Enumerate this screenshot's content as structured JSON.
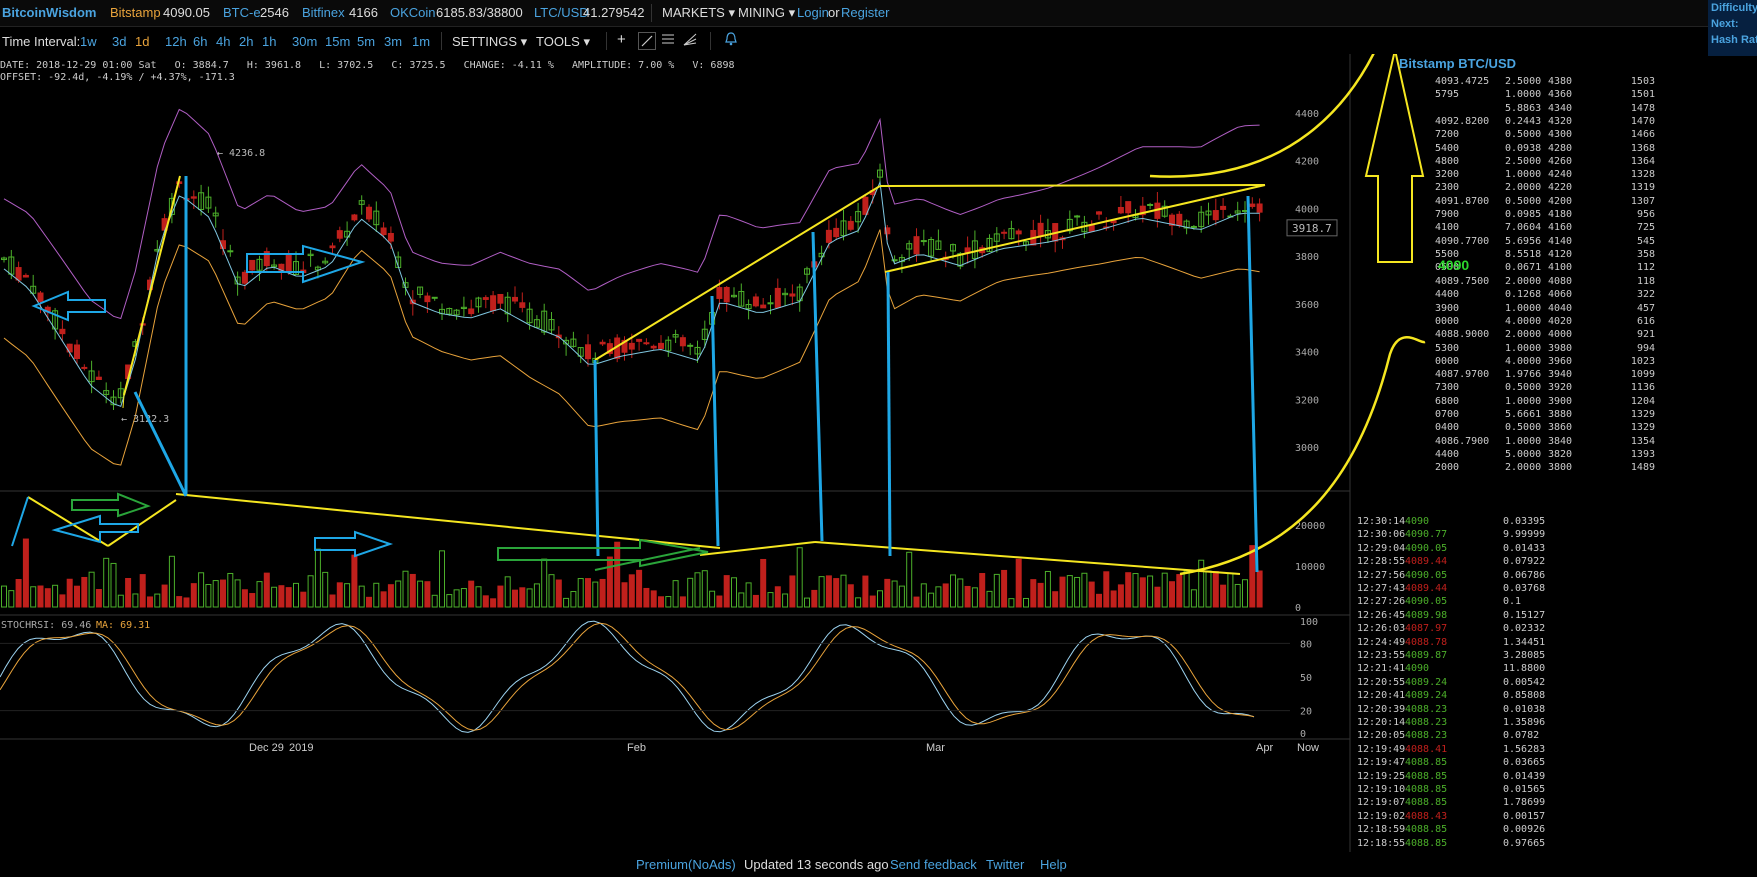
{
  "header": {
    "logo": "BitcoinWisdom",
    "tickers": [
      {
        "name": "Bitstamp",
        "value": "4090.05",
        "color": "#e8a33b"
      },
      {
        "name": "BTC-e",
        "value": "2546",
        "color": "#4aa3df"
      },
      {
        "name": "Bitfinex",
        "value": "4166",
        "color": "#4aa3df"
      },
      {
        "name": "OKCoin",
        "value": "6185.83/38800",
        "color": "#4aa3df"
      },
      {
        "name": "LTC/USD",
        "value": "41.279542",
        "color": "#4aa3df"
      }
    ],
    "menu_markets": "MARKETS",
    "menu_mining": "MINING",
    "login": "Login",
    "or": "or",
    "register": "Register",
    "right_panel": [
      "Difficulty:",
      "Next:",
      "Hash Rate:"
    ]
  },
  "toolbar": {
    "time_interval_label": "Time Interval:",
    "intervals": [
      "1w",
      "3d",
      "1d",
      "12h",
      "6h",
      "4h",
      "2h",
      "1h",
      "30m",
      "15m",
      "5m",
      "3m",
      "1m"
    ],
    "active_interval": "1d",
    "settings": "SETTINGS",
    "tools": "TOOLS"
  },
  "info": {
    "line1": "DATE: 2018-12-29 01:00 Sat   O: 3884.7   H: 3961.8   L: 3702.5   C: 3725.5   CHANGE: -4.11 %   AMPLITUDE: 7.00 %   V: 6898",
    "line2": "OFFSET: -92.4d, -4.19% / +4.37%, -171.3"
  },
  "chart": {
    "price_axis": [
      "4400",
      "4200",
      "4000",
      "3800",
      "3600",
      "3400",
      "3200",
      "3000"
    ],
    "volume_axis": [
      "20000",
      "10000",
      "0"
    ],
    "rsi_axis": [
      "100",
      "80",
      "50",
      "20",
      "0"
    ],
    "current_price": "3918.7",
    "high_label": "← 4236.8",
    "low_label": "← 3122.3",
    "stochrsi_label": "STOCHRSI: 69.46",
    "ma_label": "MA: 69.31",
    "x_labels": [
      "Dec 29",
      "2019",
      "Feb",
      "Mar",
      "Apr",
      "Now"
    ]
  },
  "orderbook": {
    "title": "Bitstamp BTC/USD",
    "mid_price": "4090",
    "asks": [
      [
        "4093.4725",
        "2.5000",
        "4380",
        "1503"
      ],
      [
        "5795",
        "1.0000",
        "4360",
        "1501"
      ],
      [
        "",
        "5.8863",
        "4340",
        "1478"
      ],
      [
        "4092.8200",
        "0.2443",
        "4320",
        "1470"
      ],
      [
        "7200",
        "0.5000",
        "4300",
        "1466"
      ],
      [
        "5400",
        "0.0938",
        "4280",
        "1368"
      ],
      [
        "4800",
        "2.5000",
        "4260",
        "1364"
      ],
      [
        "3200",
        "1.0000",
        "4240",
        "1328"
      ],
      [
        "2300",
        "2.0000",
        "4220",
        "1319"
      ],
      [
        "4091.8700",
        "0.5000",
        "4200",
        "1307"
      ],
      [
        "7900",
        "0.0985",
        "4180",
        "956"
      ],
      [
        "4100",
        "7.0604",
        "4160",
        "725"
      ],
      [
        "4090.7700",
        "5.6956",
        "4140",
        "545"
      ],
      [
        "5500",
        "8.5518",
        "4120",
        "358"
      ],
      [
        "0500",
        "0.0671",
        "4100",
        "112"
      ]
    ],
    "bids": [
      [
        "4089.7500",
        "2.0000",
        "4080",
        "118"
      ],
      [
        "4400",
        "0.1268",
        "4060",
        "322"
      ],
      [
        "3900",
        "1.0000",
        "4040",
        "457"
      ],
      [
        "0000",
        "4.0000",
        "4020",
        "616"
      ],
      [
        "4088.9000",
        "2.0000",
        "4000",
        "921"
      ],
      [
        "5300",
        "1.0000",
        "3980",
        "994"
      ],
      [
        "0000",
        "4.0000",
        "3960",
        "1023"
      ],
      [
        "4087.9700",
        "1.9766",
        "3940",
        "1099"
      ],
      [
        "7300",
        "0.5000",
        "3920",
        "1136"
      ],
      [
        "6800",
        "1.0000",
        "3900",
        "1204"
      ],
      [
        "0700",
        "5.6661",
        "3880",
        "1329"
      ],
      [
        "0400",
        "0.5000",
        "3860",
        "1329"
      ],
      [
        "4086.7900",
        "1.0000",
        "3840",
        "1354"
      ],
      [
        "4400",
        "5.0000",
        "3820",
        "1393"
      ],
      [
        "2000",
        "2.0000",
        "3800",
        "1489"
      ]
    ]
  },
  "trades": [
    [
      "12:30:14",
      "4090",
      "0.03395",
      "g"
    ],
    [
      "12:30:06",
      "4090.77",
      "9.99999",
      "g"
    ],
    [
      "12:29:04",
      "4090.05",
      "0.01433",
      "g"
    ],
    [
      "12:28:55",
      "4089.44",
      "0.07922",
      "r"
    ],
    [
      "12:27:56",
      "4090.05",
      "0.06786",
      "g"
    ],
    [
      "12:27:43",
      "4089.44",
      "0.03768",
      "r"
    ],
    [
      "12:27:26",
      "4090.05",
      "0.1",
      "g"
    ],
    [
      "12:26:45",
      "4089.98",
      "0.15127",
      "g"
    ],
    [
      "12:26:03",
      "4087.97",
      "0.02332",
      "r"
    ],
    [
      "12:24:49",
      "4088.78",
      "1.34451",
      "r"
    ],
    [
      "12:23:55",
      "4089.87",
      "3.28085",
      "g"
    ],
    [
      "12:21:41",
      "4090",
      "11.8800",
      "g"
    ],
    [
      "12:20:55",
      "4089.24",
      "0.00542",
      "g"
    ],
    [
      "12:20:41",
      "4089.24",
      "0.85808",
      "g"
    ],
    [
      "12:20:39",
      "4088.23",
      "0.01038",
      "g"
    ],
    [
      "12:20:14",
      "4088.23",
      "1.35896",
      "g"
    ],
    [
      "12:20:05",
      "4088.23",
      "0.0782",
      "g"
    ],
    [
      "12:19:49",
      "4088.41",
      "1.56283",
      "r"
    ],
    [
      "12:19:47",
      "4088.85",
      "0.03665",
      "g"
    ],
    [
      "12:19:25",
      "4088.85",
      "0.01439",
      "g"
    ],
    [
      "12:19:10",
      "4088.85",
      "0.01565",
      "g"
    ],
    [
      "12:19:07",
      "4088.85",
      "1.78699",
      "g"
    ],
    [
      "12:19:02",
      "4088.43",
      "0.00157",
      "r"
    ],
    [
      "12:18:59",
      "4088.85",
      "0.00926",
      "g"
    ],
    [
      "12:18:55",
      "4088.85",
      "0.97665",
      "g"
    ]
  ],
  "footer": {
    "premium": "Premium(NoAds)",
    "updated": "Updated 13 seconds ago",
    "feedback": "Send feedback",
    "twitter": "Twitter",
    "help": "Help"
  },
  "colors": {
    "up": "#4caf2a",
    "down": "#c0201c",
    "accent": "#4aa3df",
    "annotation_yellow": "#f5e620",
    "annotation_blue": "#1ea7e6",
    "annotation_green": "#2aa43a"
  }
}
